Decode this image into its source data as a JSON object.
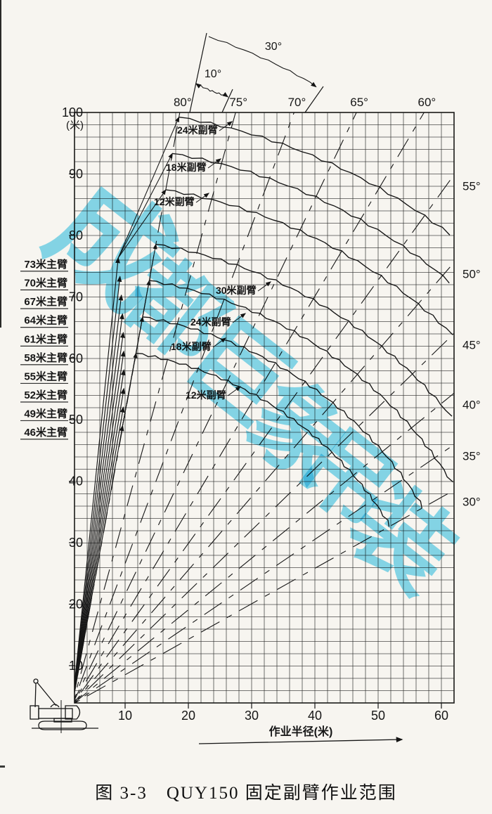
{
  "figure": {
    "caption": "图 3-3　QUY150 固定副臂作业范围",
    "watermark": "成都巨象吊装",
    "axis": {
      "x_title": "作业半径(米)",
      "y_unit": "(米)",
      "x_ticks": [
        10,
        20,
        30,
        40,
        50,
        60
      ],
      "y_ticks": [
        100,
        90,
        80,
        70,
        60,
        50,
        40,
        30,
        20,
        10
      ]
    },
    "angle_labels": {
      "top": [
        "80°",
        "75°",
        "70°",
        "65°",
        "60°"
      ],
      "right": [
        "55°",
        "50°",
        "45°",
        "40°",
        "35°",
        "30°"
      ],
      "offset_10": "10°",
      "offset_30": "30°"
    },
    "boom_labels": [
      "73米主臂",
      "70米主臂",
      "67米主臂",
      "64米主臂",
      "61米主臂",
      "58米主臂",
      "55米主臂",
      "52米主臂",
      "49米主臂",
      "46米主臂"
    ],
    "jib_labels_upper": [
      "24米副臂",
      "18米副臂",
      "12米副臂"
    ],
    "jib_labels_lower": [
      "30米副臂",
      "24米副臂",
      "18米副臂",
      "12米副臂"
    ]
  },
  "chart_data": {
    "type": "line",
    "title": "QUY150 固定副臂作业范围",
    "xlabel": "作业半径(米)",
    "ylabel": "米",
    "xlim": [
      0,
      62
    ],
    "ylim": [
      0,
      100
    ],
    "x_ticks": [
      10,
      20,
      30,
      40,
      50,
      60
    ],
    "y_ticks": [
      10,
      20,
      30,
      40,
      50,
      60,
      70,
      80,
      90,
      100
    ],
    "grid_step_m": 2,
    "boom_pivot_m": {
      "x": 1.7,
      "y": 3.7
    },
    "boom_angle_lines_deg": [
      80,
      75,
      70,
      65,
      60,
      55,
      50,
      45,
      40,
      35,
      30
    ],
    "main_boom_lengths_m": [
      73,
      70,
      67,
      64,
      61,
      58,
      55,
      52,
      49,
      46
    ],
    "fixed_jib_lengths_m": [
      12,
      18,
      24,
      30
    ],
    "jib_offset_angles_deg": [
      10,
      30
    ],
    "series": [
      {
        "name": "73米主臂+24米副臂",
        "tip_radius_m": 97,
        "boom_angle_range_deg": [
          80,
          52
        ]
      },
      {
        "name": "73米主臂+18米副臂",
        "tip_radius_m": 91,
        "boom_angle_range_deg": [
          80,
          49
        ]
      },
      {
        "name": "73米主臂+12米副臂",
        "tip_radius_m": 85,
        "boom_angle_range_deg": [
          80,
          45
        ]
      },
      {
        "name": "46米主臂+30米副臂",
        "tip_radius_m": 76,
        "boom_angle_range_deg": [
          80,
          38
        ]
      },
      {
        "name": "46米主臂+24米副臂",
        "tip_radius_m": 70,
        "boom_angle_range_deg": [
          80,
          31
        ]
      },
      {
        "name": "46米主臂+18米副臂",
        "tip_radius_m": 64,
        "boom_angle_range_deg": [
          80,
          30
        ]
      },
      {
        "name": "46米主臂+12米副臂",
        "tip_radius_m": 58,
        "boom_angle_range_deg": [
          80,
          30
        ]
      }
    ]
  }
}
